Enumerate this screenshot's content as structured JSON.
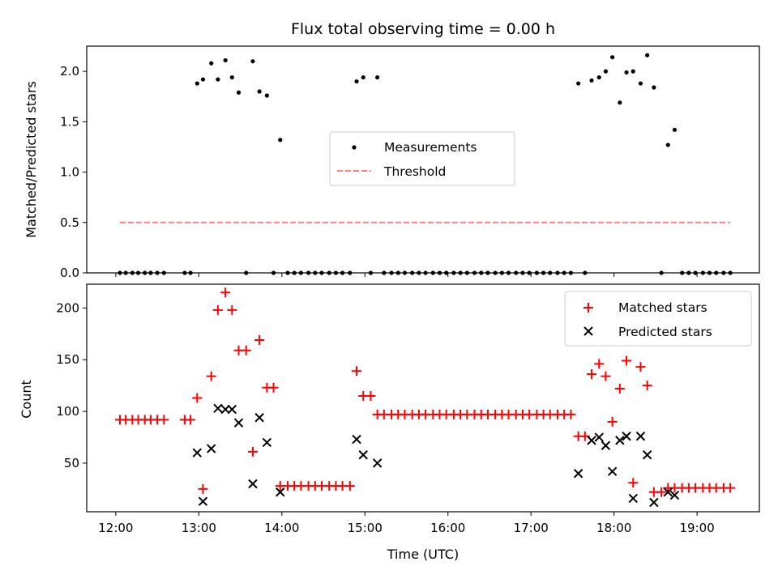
{
  "chart_data": [
    {
      "type": "scatter",
      "title": "Flux total observing time = 0.00 h",
      "xlabel": "",
      "ylabel": "Matched/Predicted stars",
      "ylim": [
        0.0,
        2.25
      ],
      "yticks": [
        "0.0",
        "0.5",
        "1.0",
        "1.5",
        "2.0"
      ],
      "xlim_hours": [
        11.65,
        19.75
      ],
      "grid": false,
      "legend_position": "center",
      "colors": {
        "measurements": "#000000",
        "threshold": "#ff7f7f"
      },
      "series": [
        {
          "name": "Measurements",
          "x_hours": [
            12.05,
            12.12,
            12.2,
            12.27,
            12.35,
            12.42,
            12.5,
            12.58,
            12.83,
            12.9,
            12.98,
            13.05,
            13.15,
            13.23,
            13.32,
            13.4,
            13.48,
            13.57,
            13.65,
            13.73,
            13.82,
            13.9,
            13.98,
            14.07,
            14.15,
            14.23,
            14.32,
            14.4,
            14.48,
            14.57,
            14.65,
            14.73,
            14.82,
            14.9,
            14.98,
            15.07,
            15.15,
            15.23,
            15.32,
            15.4,
            15.48,
            15.57,
            15.65,
            15.73,
            15.82,
            15.9,
            15.98,
            16.07,
            16.15,
            16.23,
            16.32,
            16.4,
            16.48,
            16.57,
            16.65,
            16.73,
            16.82,
            16.9,
            16.98,
            17.07,
            17.15,
            17.23,
            17.32,
            17.4,
            17.48,
            17.57,
            17.65,
            17.73,
            17.82,
            17.9,
            17.98,
            18.07,
            18.15,
            18.23,
            18.32,
            18.4,
            18.48,
            18.57,
            18.65,
            18.73,
            18.82,
            18.9,
            18.98,
            19.07,
            19.15,
            19.23,
            19.32,
            19.4
          ],
          "y": [
            0,
            0,
            0,
            0,
            0,
            0,
            0,
            0,
            0,
            0,
            1.88,
            1.92,
            2.08,
            1.92,
            2.11,
            1.94,
            1.79,
            0,
            2.1,
            1.8,
            1.76,
            0,
            1.32,
            0,
            0,
            0,
            0,
            0,
            0,
            0,
            0,
            0,
            0,
            1.9,
            1.94,
            0,
            1.94,
            0,
            0,
            0,
            0,
            0,
            0,
            0,
            0,
            0,
            0,
            0,
            0,
            0,
            0,
            0,
            0,
            0,
            0,
            0,
            0,
            0,
            0,
            0,
            0,
            0,
            0,
            0,
            0,
            1.88,
            0,
            1.91,
            1.94,
            2.0,
            2.14,
            1.69,
            1.99,
            2.0,
            1.88,
            2.16,
            1.84,
            0,
            1.27,
            1.42,
            0,
            0,
            0,
            0,
            0,
            0,
            0,
            0
          ]
        },
        {
          "name": "Threshold",
          "style": "dashed",
          "x_hours": [
            12.05,
            19.4
          ],
          "y": [
            0.5,
            0.5
          ]
        }
      ]
    },
    {
      "type": "scatter",
      "title": "",
      "xlabel": "Time (UTC)",
      "ylabel": "Count",
      "ylim": [
        3,
        223
      ],
      "yticks": [
        "50",
        "100",
        "150",
        "200"
      ],
      "xlim_hours": [
        11.65,
        19.75
      ],
      "xticks": [
        "12:00",
        "13:00",
        "14:00",
        "15:00",
        "16:00",
        "17:00",
        "18:00",
        "19:00"
      ],
      "grid": false,
      "legend_position": "upper right",
      "colors": {
        "matched": "#ff0000",
        "predicted": "#000000"
      },
      "series": [
        {
          "name": "Matched stars",
          "marker": "plus",
          "x_hours": [
            12.05,
            12.12,
            12.2,
            12.27,
            12.35,
            12.42,
            12.5,
            12.58,
            12.83,
            12.9,
            12.98,
            13.05,
            13.15,
            13.23,
            13.32,
            13.4,
            13.48,
            13.57,
            13.65,
            13.73,
            13.82,
            13.9,
            13.98,
            14.07,
            14.15,
            14.23,
            14.32,
            14.4,
            14.48,
            14.57,
            14.65,
            14.73,
            14.82,
            14.9,
            14.98,
            15.07,
            15.15,
            15.23,
            15.32,
            15.4,
            15.48,
            15.57,
            15.65,
            15.73,
            15.82,
            15.9,
            15.98,
            16.07,
            16.15,
            16.23,
            16.32,
            16.4,
            16.48,
            16.57,
            16.65,
            16.73,
            16.82,
            16.9,
            16.98,
            17.07,
            17.15,
            17.23,
            17.32,
            17.4,
            17.48,
            17.57,
            17.65,
            17.73,
            17.82,
            17.9,
            17.98,
            18.07,
            18.15,
            18.23,
            18.32,
            18.4,
            18.48,
            18.57,
            18.65,
            18.73,
            18.82,
            18.9,
            18.98,
            19.07,
            19.15,
            19.23,
            19.32,
            19.4
          ],
          "y": [
            92,
            92,
            92,
            92,
            92,
            92,
            92,
            92,
            92,
            92,
            113,
            25,
            134,
            198,
            215,
            198,
            159,
            159,
            61,
            169,
            123,
            123,
            28,
            28,
            28,
            28,
            28,
            28,
            28,
            28,
            28,
            28,
            28,
            139,
            115,
            115,
            97,
            97,
            97,
            97,
            97,
            97,
            97,
            97,
            97,
            97,
            97,
            97,
            97,
            97,
            97,
            97,
            97,
            97,
            97,
            97,
            97,
            97,
            97,
            97,
            97,
            97,
            97,
            97,
            97,
            76,
            76,
            136,
            146,
            134,
            90,
            122,
            149,
            31,
            143,
            125,
            22,
            22,
            26,
            26,
            26,
            26,
            26,
            26,
            26,
            26,
            26,
            26
          ]
        },
        {
          "name": "Predicted stars",
          "marker": "x",
          "x_hours": [
            12.98,
            13.05,
            13.15,
            13.23,
            13.32,
            13.4,
            13.48,
            13.65,
            13.73,
            13.82,
            13.98,
            14.9,
            14.98,
            15.15,
            17.57,
            17.73,
            17.82,
            17.9,
            17.98,
            18.07,
            18.15,
            18.23,
            18.32,
            18.4,
            18.48,
            18.65,
            18.73
          ],
          "y": [
            60,
            13,
            64,
            103,
            102,
            102,
            89,
            30,
            94,
            70,
            22,
            73,
            58,
            50,
            40,
            72,
            75,
            67,
            42,
            72,
            76,
            16,
            76,
            58,
            12,
            22,
            19
          ]
        }
      ]
    }
  ]
}
